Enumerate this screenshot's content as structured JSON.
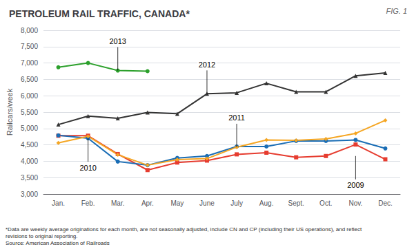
{
  "chart_data": {
    "type": "line",
    "title": "PETROLEUM RAIL TRAFFIC, CANADA*",
    "fig_label": "FIG. 1",
    "ylabel": "Railcars/week",
    "footnotes": [
      "*Data are weekly average originations for each month, are not seasonally adjusted, include CN and CP (including their US operations), and reflect",
      "revisions to original reporting.",
      "Source: American Association of Railroads"
    ],
    "categories": [
      "Jan.",
      "Feb.",
      "Mar.",
      "Apr.",
      "May",
      "June",
      "July",
      "Aug.",
      "Sept.",
      "Oct.",
      "Nov.",
      "Dec."
    ],
    "series": [
      {
        "name": "2009",
        "color": "#e63c2f",
        "marker": "square",
        "values": [
          4780,
          4780,
          4220,
          3730,
          3960,
          4020,
          4210,
          4260,
          4120,
          4160,
          4510,
          4060
        ]
      },
      {
        "name": "2010",
        "color": "#1a6db5",
        "marker": "circle",
        "values": [
          4790,
          4700,
          3990,
          3880,
          4100,
          4160,
          4450,
          4450,
          4620,
          4620,
          4650,
          4390
        ]
      },
      {
        "name": "2011",
        "color": "#f5a623",
        "marker": "diamond",
        "values": [
          4560,
          4760,
          4200,
          3880,
          4050,
          4080,
          4430,
          4650,
          4640,
          4680,
          4850,
          5250
        ]
      },
      {
        "name": "2012",
        "color": "#333333",
        "marker": "triangle",
        "values": [
          5120,
          5380,
          5310,
          5490,
          5450,
          6060,
          6090,
          6380,
          6120,
          6120,
          6610,
          6700
        ]
      },
      {
        "name": "2013",
        "color": "#2ca02c",
        "marker": "circle",
        "values": [
          6870,
          7000,
          6770,
          6750,
          null,
          null,
          null,
          null,
          null,
          null,
          null,
          null
        ]
      }
    ],
    "annotations": [
      {
        "text": "2013",
        "x": "Mar.",
        "y": 6770
      },
      {
        "text": "2012",
        "x": "June",
        "y": 6060
      },
      {
        "text": "2011",
        "x": "July",
        "y": 4430
      },
      {
        "text": "2010",
        "x": "Feb.",
        "y": 4700
      },
      {
        "text": "2009",
        "x": "Nov.",
        "y": 4160
      }
    ],
    "ylim": [
      3000,
      8000
    ],
    "yticks": [
      {
        "value": 3000,
        "label": "3,000"
      },
      {
        "value": 3500,
        "label": "3,500"
      },
      {
        "value": 4000,
        "label": "4,000"
      },
      {
        "value": 4500,
        "label": "4,500"
      },
      {
        "value": 5000,
        "label": "5,000"
      },
      {
        "value": 5500,
        "label": "5,500"
      },
      {
        "value": 6000,
        "label": "6,000"
      },
      {
        "value": 6500,
        "label": "6,500"
      },
      {
        "value": 7000,
        "label": "7,000"
      },
      {
        "value": 7500,
        "label": "7,500"
      },
      {
        "value": 8000,
        "label": "8,000"
      }
    ],
    "grid": true
  }
}
